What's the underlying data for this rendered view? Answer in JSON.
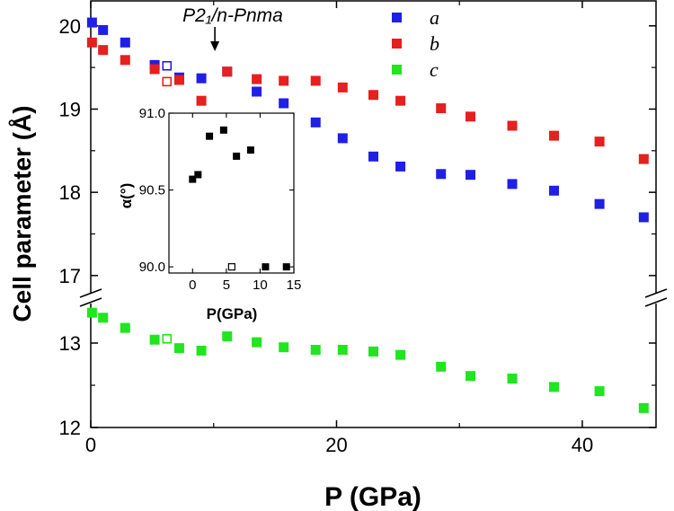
{
  "chart_data": [
    {
      "type": "scatter",
      "xlabel": "P (GPa)",
      "ylabel": "Cell parameter (Å)",
      "xlim": [
        0,
        46
      ],
      "y_segments": [
        {
          "ylim": [
            12,
            13.5
          ],
          "ticks": [
            "12",
            "13"
          ]
        },
        {
          "ylim": [
            16.75,
            20.3
          ],
          "ticks": [
            "17",
            "18",
            "19",
            "20"
          ]
        }
      ],
      "x_ticks": [
        "0",
        "20",
        "40"
      ],
      "axis_break": true,
      "annotation": {
        "text": "P2₁/n-Pnma",
        "x": 10.1
      },
      "legend_placement": "top-right",
      "series": [
        {
          "name": "a",
          "color": "#1f1fe6",
          "x": [
            0.1,
            1.0,
            2.8,
            5.2,
            7.2,
            9.0,
            11.1,
            13.5,
            15.7,
            18.3,
            20.5,
            23.0,
            25.2,
            28.5,
            30.9,
            34.3,
            37.7,
            41.4,
            45.0
          ],
          "y": [
            20.04,
            19.95,
            19.8,
            19.53,
            19.38,
            19.37,
            19.45,
            19.21,
            19.07,
            18.84,
            18.65,
            18.43,
            18.31,
            18.22,
            18.21,
            18.1,
            18.02,
            17.86,
            17.7
          ]
        },
        {
          "name": "b",
          "color": "#e61f1f",
          "x": [
            0.1,
            1.0,
            2.8,
            5.2,
            7.2,
            9.0,
            11.1,
            13.5,
            15.7,
            18.3,
            20.5,
            23.0,
            25.2,
            28.5,
            30.9,
            34.3,
            37.7,
            41.4,
            45.0
          ],
          "y": [
            19.8,
            19.71,
            19.59,
            19.48,
            19.35,
            19.1,
            19.45,
            19.36,
            19.34,
            19.34,
            19.26,
            19.17,
            19.1,
            19.01,
            18.91,
            18.8,
            18.68,
            18.61,
            18.4
          ]
        },
        {
          "name": "c",
          "color": "#1fe61f",
          "x": [
            0.1,
            1.0,
            2.8,
            5.2,
            7.2,
            9.0,
            11.1,
            13.5,
            15.7,
            18.3,
            20.5,
            23.0,
            25.2,
            28.5,
            30.9,
            34.3,
            37.7,
            41.4,
            45.0
          ],
          "y": [
            13.36,
            13.3,
            13.18,
            13.04,
            12.94,
            12.91,
            13.08,
            13.01,
            12.95,
            12.92,
            12.92,
            12.9,
            12.86,
            12.72,
            12.61,
            12.58,
            12.48,
            12.43,
            12.23
          ]
        }
      ],
      "open_markers": [
        {
          "series": "a",
          "x": 6.2,
          "y": 19.52
        },
        {
          "series": "b",
          "x": 6.2,
          "y": 19.33
        },
        {
          "series": "c",
          "x": 6.2,
          "y": 13.05
        }
      ]
    },
    {
      "type": "scatter",
      "role": "inset",
      "xlabel": "P(GPa)",
      "ylabel": "α(°)",
      "xlim": [
        -3.5,
        15
      ],
      "ylim": [
        89.96,
        91.0
      ],
      "x_ticks": [
        "0",
        "5",
        "10",
        "15"
      ],
      "y_ticks": [
        "90.0",
        "90.5",
        "91.0"
      ],
      "series": [
        {
          "name": "",
          "color": "#000000",
          "filled": true,
          "x": [
            0.0,
            0.8,
            2.5,
            4.6,
            6.5,
            8.6,
            10.8,
            13.9
          ],
          "y": [
            90.57,
            90.6,
            90.85,
            90.89,
            90.72,
            90.76,
            90.0,
            90.0
          ]
        },
        {
          "name": "",
          "color": "#000000",
          "filled": false,
          "x": [
            5.8
          ],
          "y": [
            90.0
          ]
        }
      ]
    }
  ]
}
